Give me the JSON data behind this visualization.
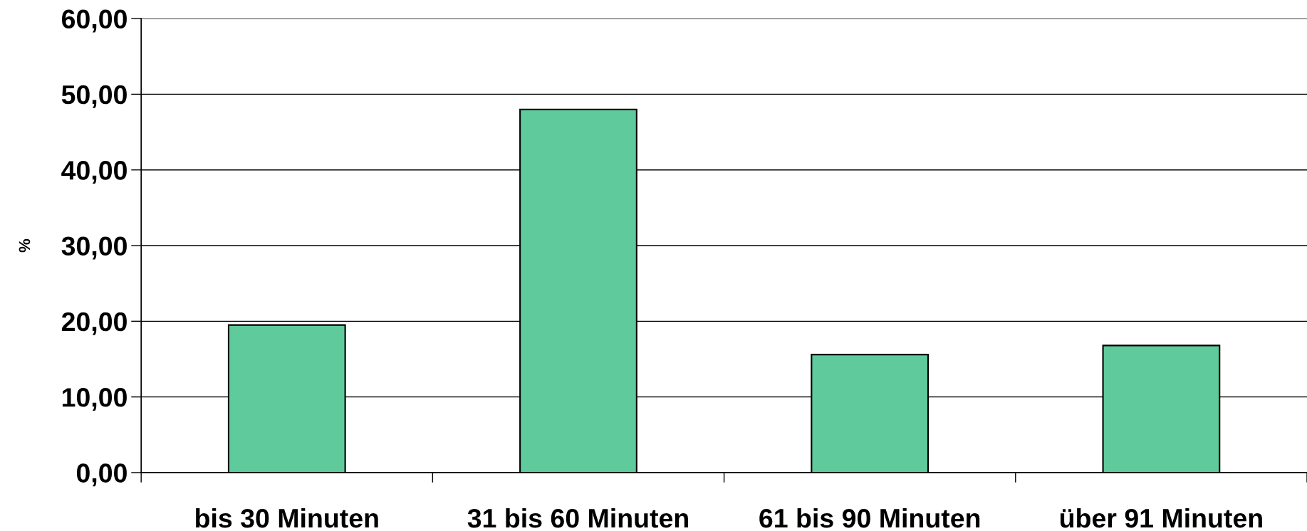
{
  "chart_data": {
    "type": "bar",
    "ylabel": "%",
    "categories": [
      "bis 30 Minuten",
      "31 bis 60 Minuten",
      "61 bis 90 Minuten",
      "über 91 Minuten"
    ],
    "values": [
      19.5,
      48.0,
      15.6,
      16.8
    ],
    "color": "#5fca9c",
    "ylim": [
      0,
      60
    ],
    "yticks": [
      {
        "value": 0,
        "label": "0,00"
      },
      {
        "value": 10,
        "label": "10,00"
      },
      {
        "value": 20,
        "label": "20,00"
      },
      {
        "value": 30,
        "label": "30,00"
      },
      {
        "value": 40,
        "label": "40,00"
      },
      {
        "value": 50,
        "label": "50,00"
      },
      {
        "value": 60,
        "label": "60,00"
      }
    ],
    "grid": "y"
  }
}
